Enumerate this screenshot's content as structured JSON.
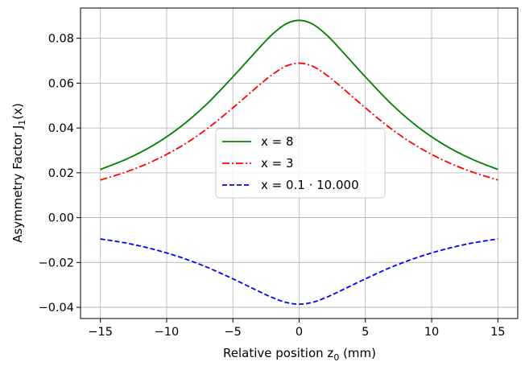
{
  "chart_data": {
    "type": "line",
    "xlabel": "Relative position z",
    "xlabel_sub": "0",
    "xlabel_unit": " (mm)",
    "ylabel": "Asymmetry Factor J",
    "ylabel_sub": "1",
    "ylabel_tail": "(x)",
    "xlim": [
      -16.5,
      16.5
    ],
    "ylim": [
      -0.045,
      0.0935
    ],
    "xticks": [
      -15,
      -10,
      -5,
      0,
      5,
      10,
      15
    ],
    "xtick_labels": [
      "−15",
      "−10",
      "−5",
      "0",
      "5",
      "10",
      "15"
    ],
    "yticks": [
      -0.04,
      -0.02,
      0.0,
      0.02,
      0.04,
      0.06,
      0.08
    ],
    "ytick_labels": [
      "−0.04",
      "−0.02",
      "0.00",
      "0.02",
      "0.04",
      "0.06",
      "0.08"
    ],
    "grid": true,
    "legend_position": "center",
    "series": [
      {
        "name": "x = 8",
        "color": "#008000",
        "dash": "solid",
        "x": [
          -15,
          -13,
          -11,
          -9,
          -7,
          -5,
          -3,
          -2,
          -1,
          0,
          1,
          2,
          3,
          5,
          7,
          9,
          11,
          13,
          15
        ],
        "y": [
          0.0215,
          0.0262,
          0.0323,
          0.0403,
          0.0505,
          0.0628,
          0.0758,
          0.0819,
          0.0864,
          0.088,
          0.0864,
          0.0819,
          0.0758,
          0.0628,
          0.0505,
          0.0403,
          0.0323,
          0.0262,
          0.0215
        ]
      },
      {
        "name": "x = 3",
        "color": "#ff0000",
        "dash": "dashdot",
        "x": [
          -15,
          -13,
          -11,
          -9,
          -7,
          -5,
          -3,
          -2,
          -1,
          0,
          1,
          2,
          3,
          5,
          7,
          9,
          11,
          13,
          15
        ],
        "y": [
          0.0168,
          0.0205,
          0.0253,
          0.0315,
          0.0394,
          0.049,
          0.0592,
          0.0639,
          0.0676,
          0.0689,
          0.0676,
          0.0639,
          0.0592,
          0.049,
          0.0394,
          0.0315,
          0.0253,
          0.0205,
          0.0168
        ]
      },
      {
        "name": "x = 0.1 · 10.000",
        "color": "#0000ff",
        "dash": "dashed",
        "x": [
          -15,
          -13,
          -11,
          -9,
          -7,
          -5,
          -3,
          -2,
          -1,
          0,
          1,
          2,
          3,
          5,
          7,
          9,
          11,
          13,
          15
        ],
        "y": [
          -0.0095,
          -0.0114,
          -0.0141,
          -0.0176,
          -0.022,
          -0.0273,
          -0.033,
          -0.0357,
          -0.0378,
          -0.0386,
          -0.0378,
          -0.0357,
          -0.033,
          -0.0273,
          -0.022,
          -0.0176,
          -0.0141,
          -0.0114,
          -0.0095
        ]
      }
    ]
  }
}
